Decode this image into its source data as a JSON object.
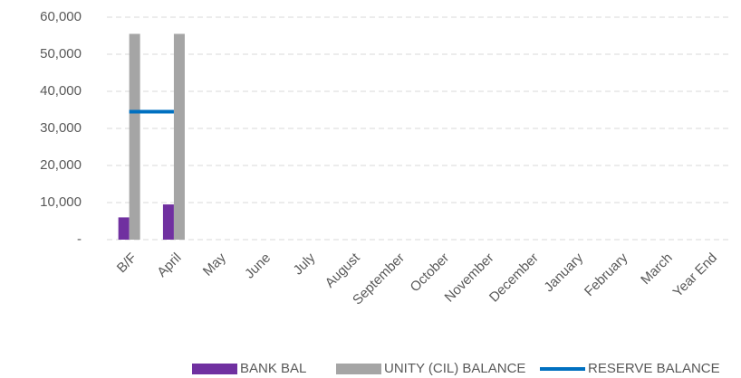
{
  "chart_data": {
    "type": "bar",
    "categories": [
      "B/F",
      "April",
      "May",
      "June",
      "July",
      "August",
      "September",
      "October",
      "November",
      "December",
      "January",
      "February",
      "March",
      "Year End"
    ],
    "series": [
      {
        "name": "BANK BAL",
        "color": "#7030a0",
        "values": [
          6000,
          9500,
          null,
          null,
          null,
          null,
          null,
          null,
          null,
          null,
          null,
          null,
          null,
          null
        ]
      },
      {
        "name": "UNITY (CIL) BALANCE",
        "color": "#a5a5a5",
        "values": [
          55500,
          55500,
          null,
          null,
          null,
          null,
          null,
          null,
          null,
          null,
          null,
          null,
          null,
          null
        ]
      },
      {
        "name": "RESERVE BALANCE",
        "color": "#0070c0",
        "type": "line",
        "values": [
          34500,
          34500,
          null,
          null,
          null,
          null,
          null,
          null,
          null,
          null,
          null,
          null,
          null,
          null
        ]
      }
    ],
    "ylim": [
      0,
      60000
    ],
    "yticks": [
      {
        "value": 0,
        "label": "-"
      },
      {
        "value": 10000,
        "label": "10,000"
      },
      {
        "value": 20000,
        "label": "20,000"
      },
      {
        "value": 30000,
        "label": "30,000"
      },
      {
        "value": 40000,
        "label": "40,000"
      },
      {
        "value": 50000,
        "label": "50,000"
      },
      {
        "value": 60000,
        "label": "60,000"
      }
    ],
    "grid": true,
    "legend": "bottom"
  }
}
